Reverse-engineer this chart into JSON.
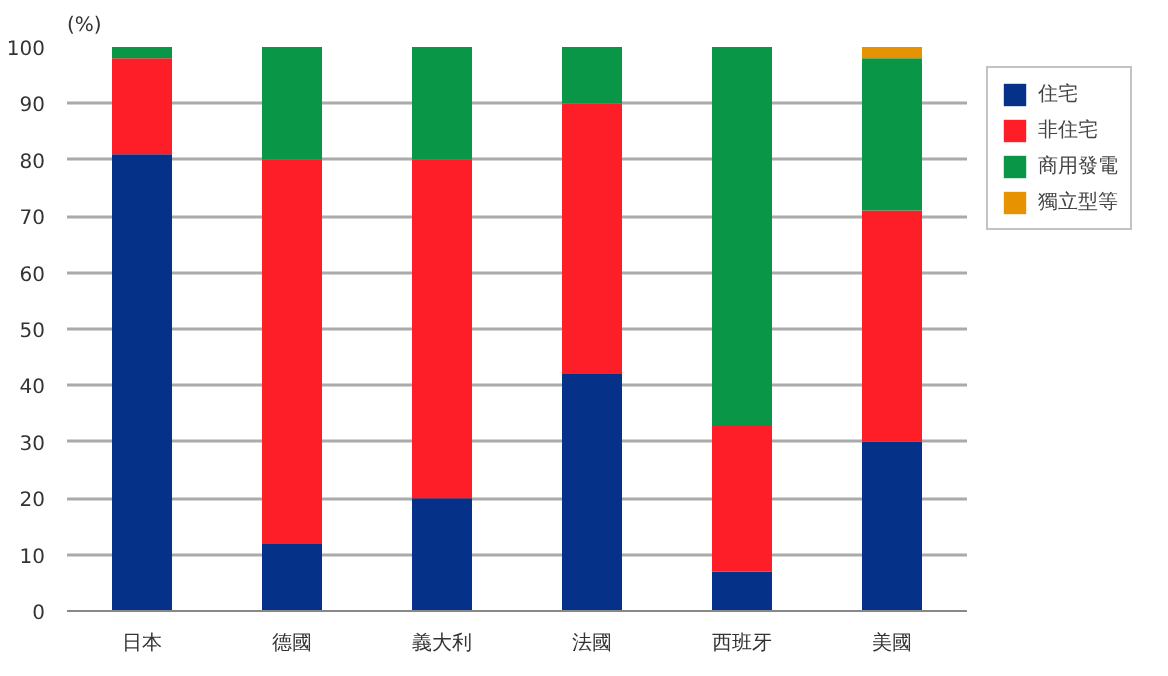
{
  "chart_data": {
    "type": "bar",
    "stacked": true,
    "ylabel": "(%)",
    "categories": [
      "日本",
      "德國",
      "義大利",
      "法國",
      "西班牙",
      "美國"
    ],
    "series": [
      {
        "name": "住宅",
        "color": "#063189",
        "values": [
          81,
          12,
          20,
          42,
          7,
          30
        ]
      },
      {
        "name": "非住宅",
        "color": "#fe1e27",
        "values": [
          17,
          68,
          60,
          48,
          26,
          41
        ]
      },
      {
        "name": "商用發電",
        "color": "#099646",
        "values": [
          2,
          20,
          20,
          10,
          67,
          27
        ]
      },
      {
        "name": "獨立型等",
        "color": "#e79201",
        "values": [
          0,
          0,
          0,
          0,
          0,
          2
        ]
      }
    ],
    "ylim": [
      0,
      100
    ],
    "yticks": [
      0,
      10,
      20,
      30,
      40,
      50,
      60,
      70,
      80,
      90,
      100
    ],
    "grid": "y",
    "legend": "right"
  }
}
